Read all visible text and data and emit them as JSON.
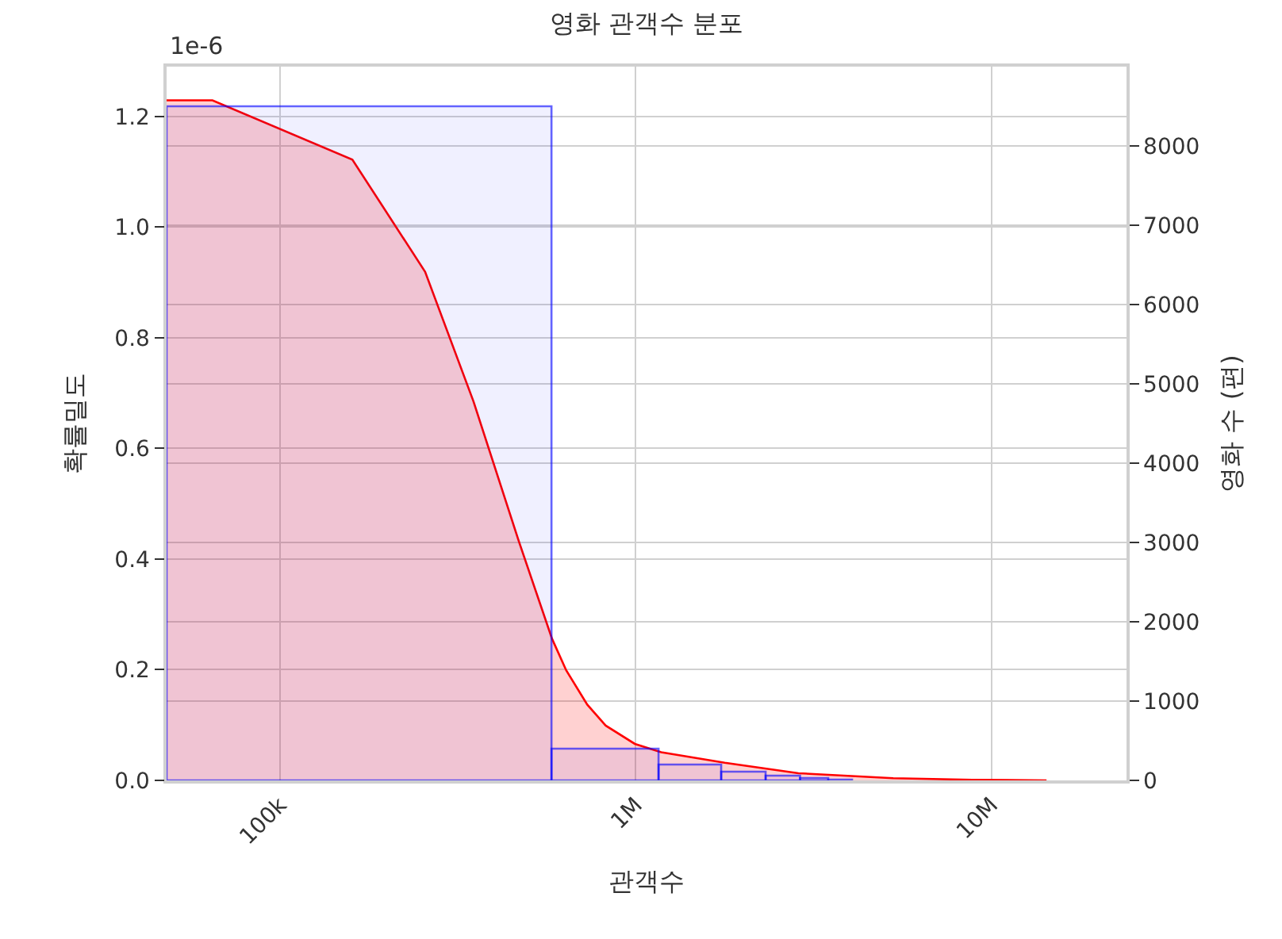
{
  "chart_data": {
    "type": "histogram",
    "title": "영화 관객수 분포",
    "xlabel": "관객수",
    "ylabel": "확률밀도",
    "y2label": "영화 수 (편)",
    "annotations": [
      "1e-6"
    ],
    "log": "x",
    "grid": true,
    "xlim": [
      48000,
      24000000
    ],
    "xticks": [
      {
        "value": 100000,
        "label": "100k"
      },
      {
        "value": 1000000,
        "label": "1M"
      },
      {
        "value": 10000000,
        "label": "10M"
      }
    ],
    "ylim": [
      0,
      1.29
    ],
    "yticks": [
      {
        "value": 0,
        "label": "0.0"
      },
      {
        "value": 0.2,
        "label": "0.2"
      },
      {
        "value": 0.4,
        "label": "0.4"
      },
      {
        "value": 0.6,
        "label": "0.6"
      },
      {
        "value": 0.8,
        "label": "0.8"
      },
      {
        "value": 1.0,
        "label": "1.0"
      },
      {
        "value": 1.2,
        "label": "1.2"
      }
    ],
    "y2lim": [
      0,
      9000
    ],
    "y2ticks": [
      0,
      1000,
      2000,
      3000,
      4000,
      5000,
      6000,
      7000,
      8000
    ],
    "series": [
      {
        "axis": "y2",
        "color": "#0000ff",
        "bins": [
          48000,
          580000,
          1160000,
          1740000,
          2320000,
          2900000,
          3480000,
          4060000
        ],
        "values": [
          8500,
          400,
          200,
          110,
          60,
          30,
          10
        ]
      },
      {
        "type": "area",
        "axis": "y",
        "color": "#ff0000",
        "x": [
          48000,
          64600,
          159800,
          256000,
          350000,
          469000,
          582000,
          638000,
          731000,
          824000,
          995000,
          1180000,
          1780000,
          2870000,
          5300000,
          8850000,
          14300000
        ],
        "values": [
          1.229,
          1.229,
          1.122,
          0.919,
          0.685,
          0.433,
          0.256,
          0.199,
          0.137,
          0.099,
          0.066,
          0.051,
          0.032,
          0.013,
          0.004,
          0.001,
          0
        ]
      }
    ]
  }
}
